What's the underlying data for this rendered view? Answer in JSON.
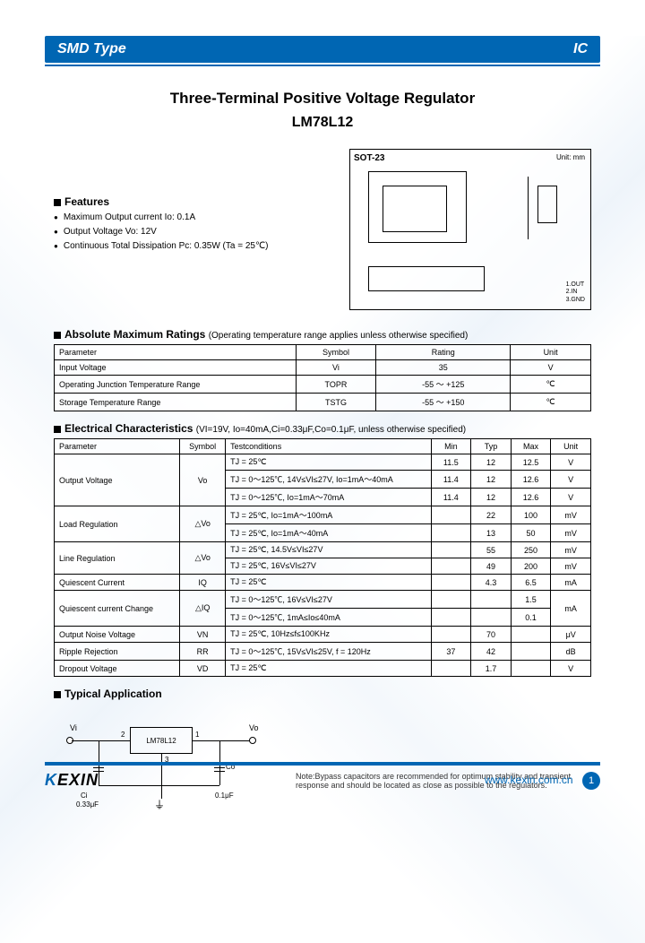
{
  "header": {
    "left": "SMD Type",
    "right": "IC"
  },
  "title": "Three-Terminal Positive Voltage Regulator",
  "part": "LM78L12",
  "package": {
    "name": "SOT-23",
    "unit": "Unit: mm",
    "pins": "1.OUT\n2.IN\n3.GND"
  },
  "features": {
    "heading": "Features",
    "items": [
      "Maximum Output current Io: 0.1A",
      "Output Voltage Vo: 12V",
      "Continuous Total Dissipation Pc: 0.35W (Ta = 25℃)"
    ]
  },
  "abs_max": {
    "heading": "Absolute Maximum Ratings",
    "note": "(Operating temperature range applies unless otherwise specified)",
    "columns": [
      "Parameter",
      "Symbol",
      "Rating",
      "Unit"
    ],
    "rows": [
      [
        "Input Voltage",
        "Vi",
        "35",
        "V"
      ],
      [
        "Operating Junction Temperature Range",
        "TOPR",
        "-55 ～ +125",
        "℃"
      ],
      [
        "Storage Temperature Range",
        "TSTG",
        "-55 ～ +150",
        "℃"
      ]
    ]
  },
  "elec": {
    "heading": "Electrical Characteristics",
    "note": "(VI=19V, Io=40mA,Ci=0.33μF,Co=0.1μF, unless otherwise specified)",
    "columns": [
      "Parameter",
      "Symbol",
      "Testconditions",
      "Min",
      "Typ",
      "Max",
      "Unit"
    ],
    "rows": [
      {
        "p": "Output Voltage",
        "s": "Vo",
        "rows": [
          [
            "TJ = 25℃",
            "11.5",
            "12",
            "12.5",
            "V"
          ],
          [
            "TJ = 0～125℃, 14V≤VI≤27V, Io=1mA～40mA",
            "11.4",
            "12",
            "12.6",
            "V"
          ],
          [
            "TJ = 0～125℃, Io=1mA～70mA",
            "11.4",
            "12",
            "12.6",
            "V"
          ]
        ]
      },
      {
        "p": "Load Regulation",
        "s": "△Vo",
        "rows": [
          [
            "TJ = 25℃, Io=1mA～100mA",
            "",
            "22",
            "100",
            "mV"
          ],
          [
            "TJ = 25℃, Io=1mA～40mA",
            "",
            "13",
            "50",
            "mV"
          ]
        ]
      },
      {
        "p": "Line Regulation",
        "s": "△Vo",
        "rows": [
          [
            "TJ = 25℃, 14.5V≤VI≤27V",
            "",
            "55",
            "250",
            "mV"
          ],
          [
            "TJ = 25℃, 16V≤VI≤27V",
            "",
            "49",
            "200",
            "mV"
          ]
        ]
      },
      {
        "p": "Quiescent Current",
        "s": "IQ",
        "rows": [
          [
            "TJ = 25℃",
            "",
            "4.3",
            "6.5",
            "mA"
          ]
        ]
      },
      {
        "p": "Quiescent current Change",
        "s": "△IQ",
        "rows": [
          [
            "TJ = 0～125℃, 16V≤VI≤27V",
            "",
            "",
            "1.5",
            "mA"
          ],
          [
            "TJ = 0～125℃, 1mA≤Io≤40mA",
            "",
            "",
            "0.1",
            ""
          ]
        ],
        "unit_span": true
      },
      {
        "p": "Output Noise Voltage",
        "s": "VN",
        "rows": [
          [
            "TJ = 25℃, 10Hz≤f≤100KHz",
            "",
            "70",
            "",
            "μV"
          ]
        ]
      },
      {
        "p": "Ripple Rejection",
        "s": "RR",
        "rows": [
          [
            "TJ = 0～125℃, 15V≤VI≤25V, f = 120Hz",
            "37",
            "42",
            "",
            "dB"
          ]
        ]
      },
      {
        "p": "Dropout Voltage",
        "s": "VD",
        "rows": [
          [
            "TJ = 25℃",
            "",
            "1.7",
            "",
            "V"
          ]
        ]
      }
    ]
  },
  "app": {
    "heading": "Typical Application",
    "vi": "Vi",
    "vo": "Vo",
    "chip": "LM78L12",
    "ci_label": "Ci",
    "ci_val": "0.33μF",
    "co_label": "Co",
    "co_val": "0.1μF",
    "p1": "1",
    "p2": "2",
    "p3": "3",
    "note": "Note:Bypass capacitors are recommended for optimum stability and transient response and should be located as close as possible to the regulators."
  },
  "footer": {
    "logo": "KEXIN",
    "url": "www.kexin.com.cn",
    "page": "1"
  },
  "colors": {
    "brand": "#0066b3",
    "text": "#000000",
    "border": "#000000"
  }
}
